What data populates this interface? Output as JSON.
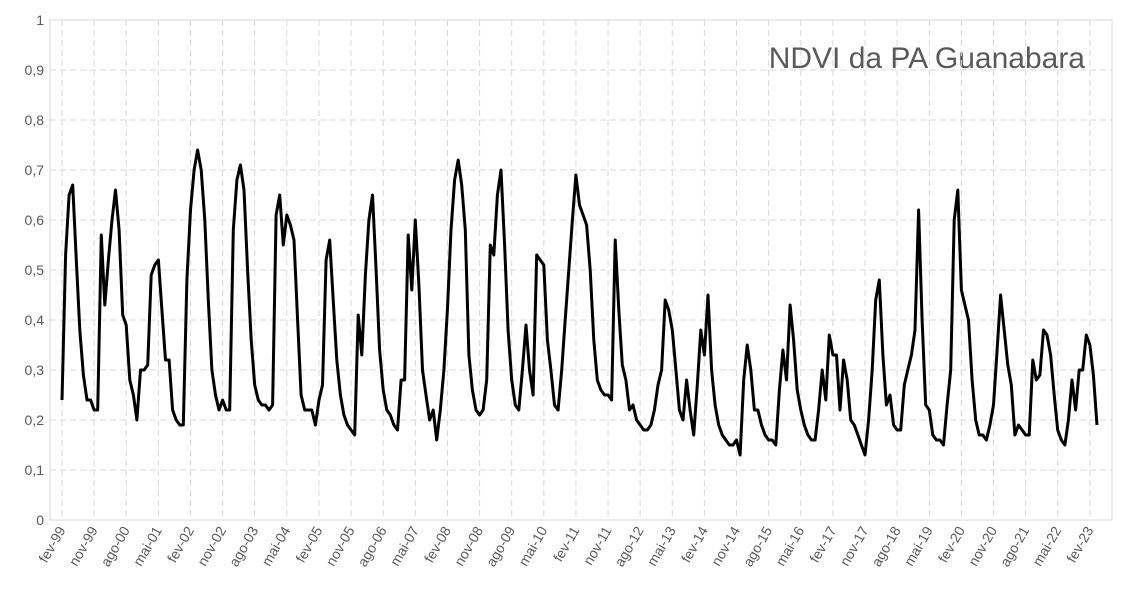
{
  "chart_data": {
    "type": "line",
    "title": "NDVI da PA Guanabara",
    "color": "#000000",
    "grid": true,
    "ylim": [
      0,
      1
    ],
    "yticks": [
      0,
      {
        "value": 0.1,
        "label": "0,1"
      },
      {
        "value": 0.2,
        "label": "0,2"
      },
      {
        "value": 0.3,
        "label": "0,3"
      },
      {
        "value": 0.4,
        "label": "0,4"
      },
      {
        "value": 0.5,
        "label": "0,5"
      },
      {
        "value": 0.6,
        "label": "0,6"
      },
      {
        "value": 0.7,
        "label": "0,7"
      },
      {
        "value": 0.8,
        "label": "0,8"
      },
      {
        "value": 0.9,
        "label": "0,9"
      },
      1
    ],
    "categories": [
      "fev-99",
      null,
      null,
      null,
      null,
      null,
      null,
      null,
      null,
      "nov-99",
      null,
      null,
      null,
      null,
      null,
      null,
      null,
      null,
      "ago-00",
      null,
      null,
      null,
      null,
      null,
      null,
      null,
      null,
      "mai-01",
      null,
      null,
      null,
      null,
      null,
      null,
      null,
      null,
      "fev-02",
      null,
      null,
      null,
      null,
      null,
      null,
      null,
      null,
      "nov-02",
      null,
      null,
      null,
      null,
      null,
      null,
      null,
      null,
      "ago-03",
      null,
      null,
      null,
      null,
      null,
      null,
      null,
      null,
      "mai-04",
      null,
      null,
      null,
      null,
      null,
      null,
      null,
      null,
      "fev-05",
      null,
      null,
      null,
      null,
      null,
      null,
      null,
      null,
      "nov-05",
      null,
      null,
      null,
      null,
      null,
      null,
      null,
      null,
      "ago-06",
      null,
      null,
      null,
      null,
      null,
      null,
      null,
      null,
      "mai-07",
      null,
      null,
      null,
      null,
      null,
      null,
      null,
      null,
      "fev-08",
      null,
      null,
      null,
      null,
      null,
      null,
      null,
      null,
      "nov-08",
      null,
      null,
      null,
      null,
      null,
      null,
      null,
      null,
      "ago-09",
      null,
      null,
      null,
      null,
      null,
      null,
      null,
      null,
      "mai-10",
      null,
      null,
      null,
      null,
      null,
      null,
      null,
      null,
      "fev-11",
      null,
      null,
      null,
      null,
      null,
      null,
      null,
      null,
      "nov-11",
      null,
      null,
      null,
      null,
      null,
      null,
      null,
      null,
      "ago-12",
      null,
      null,
      null,
      null,
      null,
      null,
      null,
      null,
      "mai-13",
      null,
      null,
      null,
      null,
      null,
      null,
      null,
      null,
      "fev-14",
      null,
      null,
      null,
      null,
      null,
      null,
      null,
      null,
      "nov-14",
      null,
      null,
      null,
      null,
      null,
      null,
      null,
      null,
      "ago-15",
      null,
      null,
      null,
      null,
      null,
      null,
      null,
      null,
      "mai-16",
      null,
      null,
      null,
      null,
      null,
      null,
      null,
      null,
      "fev-17",
      null,
      null,
      null,
      null,
      null,
      null,
      null,
      null,
      "nov-17",
      null,
      null,
      null,
      null,
      null,
      null,
      null,
      null,
      "ago-18",
      null,
      null,
      null,
      null,
      null,
      null,
      null,
      null,
      "mai-19",
      null,
      null,
      null,
      null,
      null,
      null,
      null,
      null,
      "fev-20",
      null,
      null,
      null,
      null,
      null,
      null,
      null,
      null,
      "nov-20",
      null,
      null,
      null,
      null,
      null,
      null,
      null,
      null,
      "ago-21",
      null,
      null,
      null,
      null,
      null,
      null,
      null,
      null,
      "mai-22",
      null,
      null,
      null,
      null,
      null,
      null,
      null,
      null,
      "fev-23",
      null,
      null
    ],
    "values": [
      0.24,
      0.53,
      0.65,
      0.67,
      0.52,
      0.38,
      0.29,
      0.24,
      0.24,
      0.22,
      0.22,
      0.57,
      0.43,
      0.52,
      0.6,
      0.66,
      0.58,
      0.41,
      0.39,
      0.28,
      0.25,
      0.2,
      0.3,
      0.3,
      0.31,
      0.49,
      0.51,
      0.52,
      0.42,
      0.32,
      0.32,
      0.22,
      0.2,
      0.19,
      0.19,
      0.48,
      0.62,
      0.7,
      0.74,
      0.7,
      0.6,
      0.44,
      0.3,
      0.25,
      0.22,
      0.24,
      0.22,
      0.22,
      0.58,
      0.68,
      0.71,
      0.66,
      0.5,
      0.36,
      0.27,
      0.24,
      0.23,
      0.23,
      0.22,
      0.23,
      0.61,
      0.65,
      0.55,
      0.61,
      0.59,
      0.56,
      0.4,
      0.25,
      0.22,
      0.22,
      0.22,
      0.19,
      0.24,
      0.27,
      0.52,
      0.56,
      0.44,
      0.32,
      0.25,
      0.21,
      0.19,
      0.18,
      0.17,
      0.41,
      0.33,
      0.49,
      0.6,
      0.65,
      0.5,
      0.34,
      0.26,
      0.22,
      0.21,
      0.19,
      0.18,
      0.28,
      0.28,
      0.57,
      0.46,
      0.6,
      0.47,
      0.3,
      0.25,
      0.2,
      0.22,
      0.16,
      0.22,
      0.3,
      0.42,
      0.58,
      0.68,
      0.72,
      0.67,
      0.58,
      0.33,
      0.26,
      0.22,
      0.21,
      0.22,
      0.28,
      0.55,
      0.53,
      0.65,
      0.7,
      0.55,
      0.38,
      0.28,
      0.23,
      0.22,
      0.3,
      0.39,
      0.3,
      0.25,
      0.53,
      0.52,
      0.51,
      0.36,
      0.3,
      0.23,
      0.22,
      0.3,
      0.4,
      0.5,
      0.6,
      0.69,
      0.63,
      0.61,
      0.59,
      0.5,
      0.36,
      0.28,
      0.26,
      0.25,
      0.25,
      0.24,
      0.56,
      0.42,
      0.31,
      0.28,
      0.22,
      0.23,
      0.2,
      0.19,
      0.18,
      0.18,
      0.19,
      0.22,
      0.27,
      0.3,
      0.44,
      0.42,
      0.38,
      0.3,
      0.22,
      0.2,
      0.28,
      0.22,
      0.17,
      0.27,
      0.38,
      0.33,
      0.45,
      0.3,
      0.23,
      0.19,
      0.17,
      0.16,
      0.15,
      0.15,
      0.16,
      0.13,
      0.28,
      0.35,
      0.3,
      0.22,
      0.22,
      0.19,
      0.17,
      0.16,
      0.16,
      0.15,
      0.26,
      0.34,
      0.28,
      0.43,
      0.36,
      0.26,
      0.22,
      0.19,
      0.17,
      0.16,
      0.16,
      0.22,
      0.3,
      0.24,
      0.37,
      0.33,
      0.33,
      0.22,
      0.32,
      0.28,
      0.2,
      0.19,
      0.17,
      0.15,
      0.13,
      0.2,
      0.3,
      0.44,
      0.48,
      0.33,
      0.23,
      0.25,
      0.19,
      0.18,
      0.18,
      0.27,
      0.3,
      0.33,
      0.38,
      0.62,
      0.4,
      0.23,
      0.22,
      0.17,
      0.16,
      0.16,
      0.15,
      0.23,
      0.3,
      0.6,
      0.66,
      0.46,
      0.43,
      0.4,
      0.28,
      0.2,
      0.17,
      0.17,
      0.16,
      0.19,
      0.23,
      0.34,
      0.45,
      0.38,
      0.31,
      0.27,
      0.17,
      0.19,
      0.18,
      0.17,
      0.17,
      0.32,
      0.28,
      0.29,
      0.38,
      0.37,
      0.33,
      0.25,
      0.18,
      0.16,
      0.15,
      0.2,
      0.28,
      0.22,
      0.3,
      0.3,
      0.37,
      0.35,
      0.29,
      0.19
    ]
  }
}
